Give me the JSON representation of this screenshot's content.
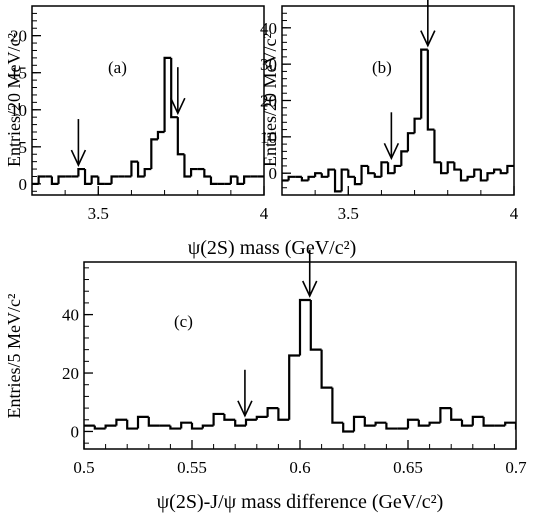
{
  "chart_data": [
    {
      "panel_label": "(a)",
      "type": "histogram",
      "ylabel": "Entries/20 MeV/c²",
      "xlim": [
        3.3,
        4.0
      ],
      "ylim": [
        -1.5,
        24
      ],
      "x_ticks": [
        3.5,
        4.0
      ],
      "x_tick_labels": [
        "3.5",
        "4"
      ],
      "y_ticks": [
        0,
        5,
        10,
        15,
        20
      ],
      "y_tick_labels": [
        "0",
        "5",
        "10",
        "15",
        "20"
      ],
      "bin_width": 0.02,
      "bin_edges_start": 3.3,
      "values": [
        0,
        1,
        1,
        0,
        1,
        1,
        1,
        2,
        0,
        1,
        0,
        0,
        1,
        1,
        1,
        3,
        1,
        2,
        6,
        7,
        17,
        9,
        4,
        1,
        2,
        2,
        1,
        0,
        0,
        0,
        1,
        0,
        1,
        1,
        1
      ],
      "arrows_x": [
        3.44,
        3.74
      ]
    },
    {
      "panel_label": "(b)",
      "type": "histogram",
      "ylabel": "Entries/20 MeV/c²",
      "xlim": [
        3.3,
        4.0
      ],
      "ylim": [
        -6,
        46
      ],
      "x_ticks": [
        3.5,
        4.0
      ],
      "x_tick_labels": [
        "3.5",
        "4"
      ],
      "y_ticks": [
        0,
        10,
        20,
        30,
        40
      ],
      "y_tick_labels": [
        "0",
        "10",
        "20",
        "30",
        "40"
      ],
      "bin_width": 0.02,
      "bin_edges_start": 3.3,
      "values": [
        -2,
        -1,
        -1,
        -2,
        -1,
        0,
        -1,
        1,
        -5,
        1,
        -1,
        -3,
        2,
        0,
        -1,
        3,
        0,
        2,
        6,
        11,
        15,
        34,
        12,
        3,
        0,
        3,
        1,
        -2,
        -1,
        1,
        -2,
        0,
        1,
        0,
        2
      ],
      "arrows_x": [
        3.63,
        3.74
      ]
    },
    {
      "panel_label": "(c)",
      "type": "histogram",
      "ylabel": "Entries/5 MeV/c²",
      "xlabel": "ψ(2S)-J/ψ mass difference (GeV/c²)",
      "xlim": [
        0.5,
        0.7
      ],
      "ylim": [
        -6,
        58
      ],
      "x_ticks": [
        0.5,
        0.55,
        0.6,
        0.65,
        0.7
      ],
      "x_tick_labels": [
        "0.5",
        "0.55",
        "0.6",
        "0.65",
        "0.7"
      ],
      "y_ticks": [
        0,
        20,
        40
      ],
      "y_tick_labels": [
        "0",
        "20",
        "40"
      ],
      "bin_width": 0.005,
      "bin_edges_start": 0.5,
      "values": [
        2,
        1,
        2,
        4,
        1,
        5,
        2,
        2,
        1,
        3,
        1,
        2,
        6,
        4,
        2,
        4,
        5,
        8,
        4,
        26,
        45,
        28,
        15,
        3,
        0,
        5,
        2,
        3,
        1,
        1,
        4,
        2,
        3,
        8,
        4,
        2,
        5,
        2,
        2,
        3,
        1
      ],
      "arrows_x": [
        0.5745,
        0.6045
      ]
    }
  ],
  "shared_xlabel_ab": "ψ(2S) mass (GeV/c²)"
}
